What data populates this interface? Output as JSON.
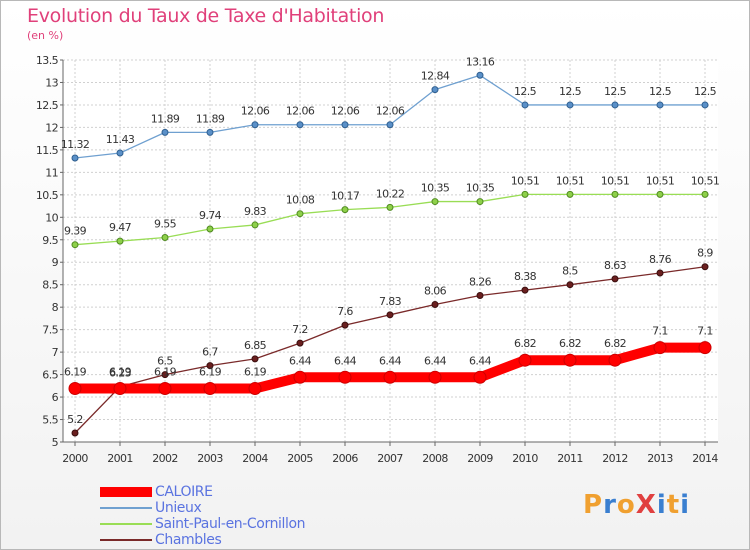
{
  "header": {
    "title": "Evolution du Taux de Taxe d'Habitation",
    "subtitle": "(en %)"
  },
  "logo": {
    "text": "ProXiti"
  },
  "chart_data": {
    "type": "line",
    "x": [
      "2000",
      "2001",
      "2002",
      "2003",
      "2004",
      "2005",
      "2006",
      "2007",
      "2008",
      "2009",
      "2010",
      "2011",
      "2012",
      "2013",
      "2014"
    ],
    "ylim": [
      5,
      13.5
    ],
    "yticks": [
      "5",
      "5.5",
      "6",
      "6.5",
      "7",
      "7.5",
      "8",
      "8.5",
      "9",
      "9.5",
      "10",
      "10.5",
      "11",
      "11.5",
      "12",
      "12.5",
      "13",
      "13.5"
    ],
    "grid": true,
    "legend_position": "bottom-left",
    "series": [
      {
        "name": "CALOIRE",
        "color": "#ff0000",
        "values": [
          6.19,
          6.19,
          6.19,
          6.19,
          6.19,
          6.44,
          6.44,
          6.44,
          6.44,
          6.44,
          6.82,
          6.82,
          6.82,
          7.1,
          7.1
        ],
        "labels": [
          "6.19",
          "6.19",
          "6.19",
          "6.19",
          "6.19",
          "6.44",
          "6.44",
          "6.44",
          "6.44",
          "6.44",
          "6.82",
          "6.82",
          "6.82",
          "7.1",
          "7.1"
        ]
      },
      {
        "name": "Unieux",
        "color": "#6fa0d0",
        "values": [
          11.32,
          11.43,
          11.89,
          11.89,
          12.06,
          12.06,
          12.06,
          12.06,
          12.84,
          13.16,
          12.5,
          12.5,
          12.5,
          12.5,
          12.5
        ],
        "labels": [
          "11.32",
          "11.43",
          "11.89",
          "11.89",
          "12.06",
          "12.06",
          "12.06",
          "12.06",
          "12.84",
          "13.16",
          "12.5",
          "12.5",
          "12.5",
          "12.5",
          "12.5"
        ]
      },
      {
        "name": "Saint-Paul-en-Cornillon",
        "color": "#99dd55",
        "values": [
          9.39,
          9.47,
          9.55,
          9.74,
          9.83,
          10.08,
          10.17,
          10.22,
          10.35,
          10.35,
          10.51,
          10.51,
          10.51,
          10.51,
          10.51
        ],
        "labels": [
          "9.39",
          "9.47",
          "9.55",
          "9.74",
          "9.83",
          "10.08",
          "10.17",
          "10.22",
          "10.35",
          "10.35",
          "10.51",
          "10.51",
          "10.51",
          "10.51",
          "10.51"
        ]
      },
      {
        "name": "Chambles",
        "color": "#7a2a2a",
        "values": [
          5.2,
          6.23,
          6.5,
          6.7,
          6.85,
          7.2,
          7.6,
          7.83,
          8.06,
          8.26,
          8.38,
          8.5,
          8.63,
          8.76,
          8.9
        ],
        "labels": [
          "5.2",
          "6.23",
          "6.5",
          "6.7",
          "6.85",
          "7.2",
          "7.6",
          "7.83",
          "8.06",
          "8.26",
          "8.38",
          "8.5",
          "8.63",
          "8.76",
          "8.9"
        ]
      }
    ]
  },
  "style": {
    "title_color": "#e0407a",
    "legend_text_color": "#5a73e0",
    "logo_colors": [
      "#f0a030",
      "#3a7fd0",
      "#f0a030",
      "#e04040",
      "#3a7fd0",
      "#f0a030",
      "#3a7fd0"
    ]
  }
}
